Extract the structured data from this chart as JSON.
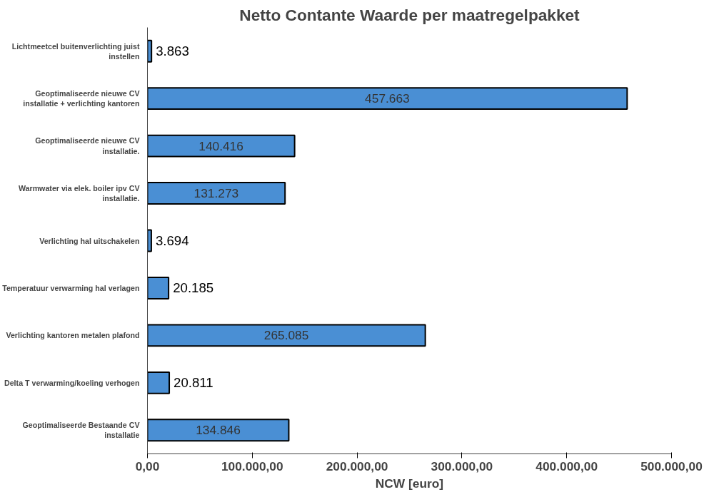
{
  "chart_data": {
    "type": "bar",
    "orientation": "horizontal",
    "title": "Netto Contante Waarde per maatregelpakket",
    "xlabel": "NCW [euro]",
    "categories": [
      "Lichtmeetcel buitenverlichting juist instellen",
      "Geoptimaliseerde nieuwe CV installatie + verlichting kantoren",
      "Geoptimaliseerde nieuwe CV installatie.",
      "Warmwater via elek. boiler ipv CV installatie.",
      "Verlichting hal uitschakelen",
      "Temperatuur verwarming hal verlagen",
      "Verlichting kantoren metalen plafond",
      "Delta T verwarming/koeling verhogen",
      "Geoptimaliseerde Bestaande CV installatie"
    ],
    "values": [
      3863,
      457663,
      140416,
      131273,
      3694,
      20185,
      265085,
      20811,
      134846
    ],
    "value_labels": [
      "3.863",
      "457.663",
      "140.416",
      "131.273",
      "3.694",
      "20.185",
      "265.085",
      "20.811",
      "134.846"
    ],
    "color": "#4a8fd4",
    "xlim": [
      0,
      500000
    ],
    "xticks": [
      {
        "value": 0,
        "label": "0,00"
      },
      {
        "value": 100000,
        "label": "100.000,00"
      },
      {
        "value": 200000,
        "label": "200.000,00"
      },
      {
        "value": 300000,
        "label": "300.000,00"
      },
      {
        "value": 400000,
        "label": "400.000,00"
      },
      {
        "value": 500000,
        "label": "500.000,00"
      }
    ],
    "grid": false
  }
}
